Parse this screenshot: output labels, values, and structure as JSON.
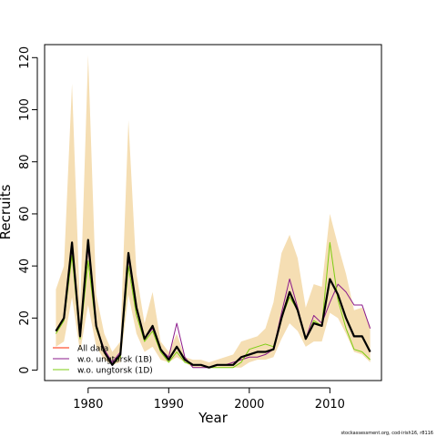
{
  "chart_data": {
    "type": "line",
    "xlabel": "Year",
    "ylabel": "Recruits",
    "xlim": [
      1974.6,
      2016.4
    ],
    "ylim": [
      -4,
      125
    ],
    "x_ticks": [
      1980,
      1990,
      2000,
      2010
    ],
    "y_ticks": [
      0,
      20,
      40,
      60,
      80,
      100,
      120
    ],
    "grid": false,
    "legend": {
      "placement": "bottom-left",
      "entries": [
        {
          "name": "All data",
          "color": "#ff2a00"
        },
        {
          "name": "w.o. ungtorsk (1B)",
          "color": "#8b1a8b"
        },
        {
          "name": "w.o. ungtorsk (1D)",
          "color": "#7ccd10"
        }
      ]
    },
    "confidence_band": {
      "color": "#f5deb3",
      "x": [
        1976,
        1977,
        1978,
        1979,
        1980,
        1981,
        1982,
        1983,
        1984,
        1985,
        1986,
        1987,
        1988,
        1989,
        1990,
        1991,
        1992,
        1993,
        1994,
        1995,
        1996,
        1997,
        1998,
        1999,
        2000,
        2001,
        2002,
        2003,
        2004,
        2005,
        2006,
        2007,
        2008,
        2009,
        2010,
        2011,
        2012,
        2013,
        2014,
        2015
      ],
      "lower": [
        9,
        11,
        28,
        7,
        25,
        9,
        4,
        2,
        3,
        29,
        14,
        7,
        9,
        4,
        3,
        5,
        3,
        1,
        1,
        1,
        1,
        1,
        1,
        1,
        3,
        4,
        4,
        5,
        12,
        18,
        15,
        9,
        11,
        11,
        22,
        20,
        14,
        7,
        6,
        3
      ],
      "upper": [
        31,
        40,
        110,
        23,
        121,
        29,
        14,
        7,
        11,
        96,
        37,
        18,
        30,
        11,
        7,
        14,
        5,
        4,
        4,
        3,
        4,
        5,
        6,
        11,
        12,
        13,
        16,
        26,
        45,
        52,
        43,
        24,
        33,
        32,
        60,
        48,
        37,
        23,
        24,
        17
      ]
    },
    "series": [
      {
        "name": "w.o. ungtorsk (1B)",
        "color": "#8b1a8b",
        "width": 1,
        "values": [
          15,
          20,
          47,
          14,
          47,
          17,
          8,
          3,
          7,
          43,
          23,
          12,
          16,
          8,
          5,
          18,
          5,
          1,
          1,
          1,
          2,
          2,
          3,
          4,
          5,
          5,
          6,
          8,
          22,
          35,
          24,
          12,
          21,
          18,
          26,
          33,
          30,
          25,
          25,
          16
        ]
      },
      {
        "name": "w.o. ungtorsk (1D)",
        "color": "#7ccd10",
        "width": 1,
        "values": [
          14,
          19,
          44,
          12,
          42,
          16,
          7,
          2,
          5,
          40,
          21,
          11,
          15,
          7,
          3,
          7,
          3,
          2,
          2,
          1,
          1,
          1,
          1,
          3,
          8,
          9,
          10,
          9,
          20,
          28,
          23,
          12,
          19,
          17,
          49,
          27,
          16,
          8,
          7,
          4
        ]
      },
      {
        "name": "All data",
        "color": "#ff2a00",
        "width": 1,
        "values": [
          15,
          20,
          49,
          13,
          50,
          17,
          7,
          2,
          6,
          45,
          24,
          12,
          17,
          8,
          4,
          9,
          4,
          2,
          2,
          1,
          2,
          2,
          2,
          5,
          6,
          7,
          7,
          8,
          20,
          30,
          23,
          12,
          18,
          17,
          35,
          29,
          20,
          13,
          13,
          7
        ]
      },
      {
        "name": "",
        "color": "#000000",
        "width": 2.2,
        "values": [
          15,
          20,
          49,
          13,
          50,
          17,
          7,
          2,
          6,
          45,
          24,
          12,
          17,
          8,
          4,
          9,
          4,
          2,
          2,
          1,
          2,
          2,
          2,
          5,
          6,
          7,
          7,
          8,
          20,
          30,
          23,
          12,
          18,
          17,
          35,
          29,
          20,
          13,
          13,
          7
        ]
      }
    ]
  },
  "footer": {
    "credit": "stockassessment.org, cod-irish16, r8116"
  }
}
